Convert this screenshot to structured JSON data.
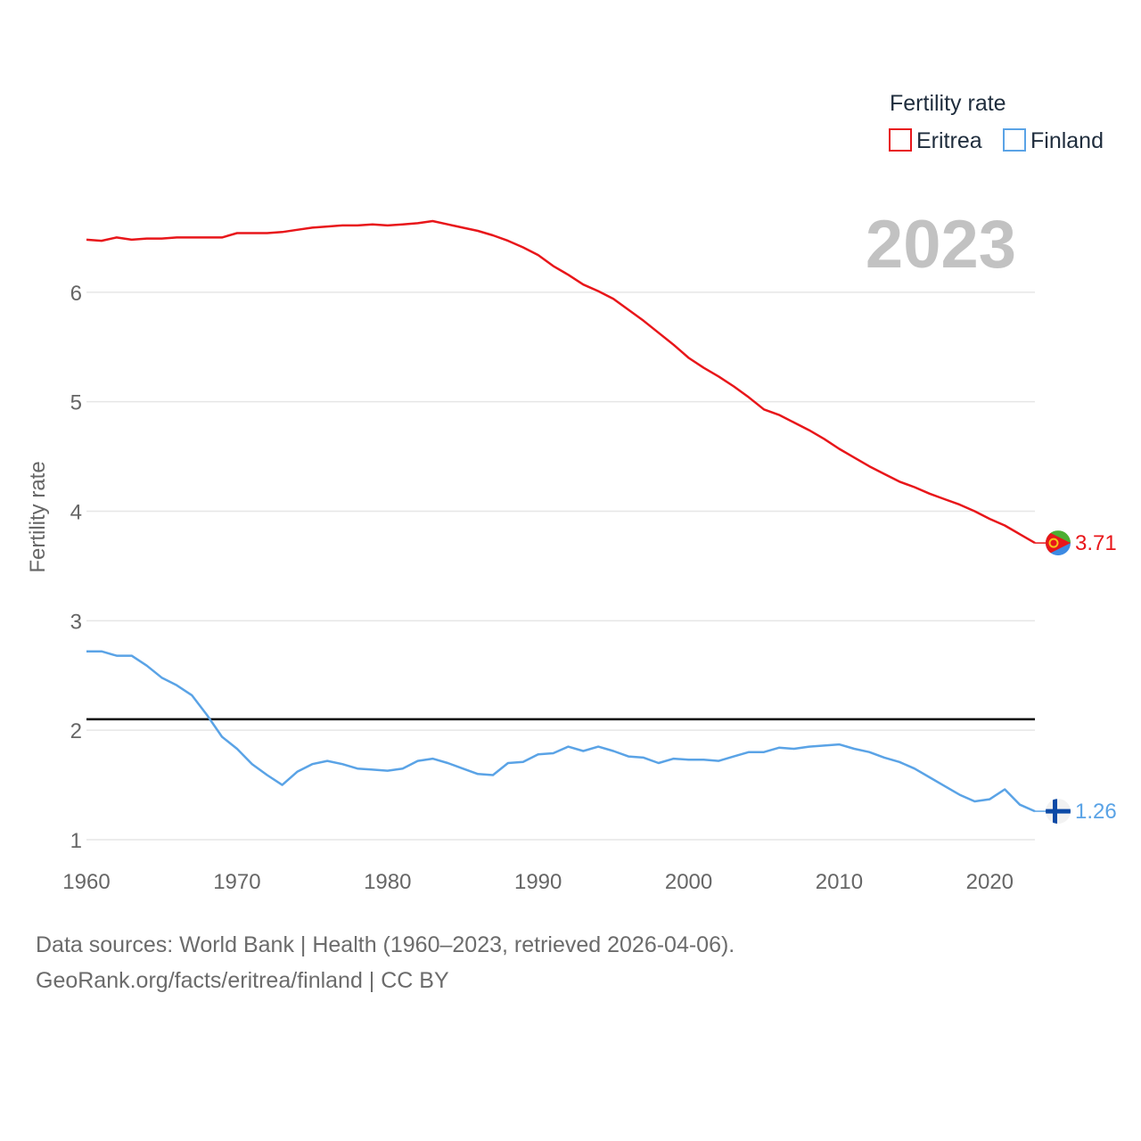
{
  "chart_data": {
    "type": "line",
    "title": "",
    "xlabel": "",
    "ylabel": "Fertility rate",
    "xlim": [
      1960,
      2023
    ],
    "ylim": [
      1,
      7
    ],
    "yticks": [
      1,
      2,
      3,
      4,
      5,
      6
    ],
    "xticks": [
      1960,
      1970,
      1980,
      1990,
      2000,
      2010,
      2020
    ],
    "year_label": "2023",
    "legend": {
      "title": "Fertility rate",
      "position": "top-right"
    },
    "reference_line": {
      "value": 2.1,
      "color": "#000000"
    },
    "series": [
      {
        "name": "Eritrea",
        "color": "#e8161a",
        "end_label": "3.71",
        "flag": "eritrea-flag",
        "x": [
          1960,
          1961,
          1962,
          1963,
          1964,
          1965,
          1966,
          1967,
          1968,
          1969,
          1970,
          1971,
          1972,
          1973,
          1974,
          1975,
          1976,
          1977,
          1978,
          1979,
          1980,
          1981,
          1982,
          1983,
          1984,
          1985,
          1986,
          1987,
          1988,
          1989,
          1990,
          1991,
          1992,
          1993,
          1994,
          1995,
          1996,
          1997,
          1998,
          1999,
          2000,
          2001,
          2002,
          2003,
          2004,
          2005,
          2006,
          2007,
          2008,
          2009,
          2010,
          2011,
          2012,
          2013,
          2014,
          2015,
          2016,
          2017,
          2018,
          2019,
          2020,
          2021,
          2022,
          2023
        ],
        "values": [
          6.48,
          6.47,
          6.5,
          6.48,
          6.49,
          6.49,
          6.5,
          6.5,
          6.5,
          6.5,
          6.54,
          6.54,
          6.54,
          6.55,
          6.57,
          6.59,
          6.6,
          6.61,
          6.61,
          6.62,
          6.61,
          6.62,
          6.63,
          6.65,
          6.62,
          6.59,
          6.56,
          6.52,
          6.47,
          6.41,
          6.34,
          6.24,
          6.16,
          6.07,
          6.01,
          5.94,
          5.84,
          5.74,
          5.63,
          5.52,
          5.4,
          5.31,
          5.23,
          5.14,
          5.04,
          4.93,
          4.88,
          4.81,
          4.74,
          4.66,
          4.57,
          4.49,
          4.41,
          4.34,
          4.27,
          4.22,
          4.16,
          4.11,
          4.06,
          4.0,
          3.93,
          3.87,
          3.79,
          3.71
        ]
      },
      {
        "name": "Finland",
        "color": "#5aa3e6",
        "end_label": "1.26",
        "flag": "finland-flag",
        "x": [
          1960,
          1961,
          1962,
          1963,
          1964,
          1965,
          1966,
          1967,
          1968,
          1969,
          1970,
          1971,
          1972,
          1973,
          1974,
          1975,
          1976,
          1977,
          1978,
          1979,
          1980,
          1981,
          1982,
          1983,
          1984,
          1985,
          1986,
          1987,
          1988,
          1989,
          1990,
          1991,
          1992,
          1993,
          1994,
          1995,
          1996,
          1997,
          1998,
          1999,
          2000,
          2001,
          2002,
          2003,
          2004,
          2005,
          2006,
          2007,
          2008,
          2009,
          2010,
          2011,
          2012,
          2013,
          2014,
          2015,
          2016,
          2017,
          2018,
          2019,
          2020,
          2021,
          2022,
          2023
        ],
        "values": [
          2.72,
          2.72,
          2.68,
          2.68,
          2.59,
          2.48,
          2.41,
          2.32,
          2.14,
          1.94,
          1.83,
          1.69,
          1.59,
          1.5,
          1.62,
          1.69,
          1.72,
          1.69,
          1.65,
          1.64,
          1.63,
          1.65,
          1.72,
          1.74,
          1.7,
          1.65,
          1.6,
          1.59,
          1.7,
          1.71,
          1.78,
          1.79,
          1.85,
          1.81,
          1.85,
          1.81,
          1.76,
          1.75,
          1.7,
          1.74,
          1.73,
          1.73,
          1.72,
          1.76,
          1.8,
          1.8,
          1.84,
          1.83,
          1.85,
          1.86,
          1.87,
          1.83,
          1.8,
          1.75,
          1.71,
          1.65,
          1.57,
          1.49,
          1.41,
          1.35,
          1.37,
          1.46,
          1.32,
          1.26
        ]
      }
    ]
  },
  "footer": {
    "line1": "Data sources: World Bank | Health (1960–2023, retrieved 2026-04-06).",
    "line2": "GeoRank.org/facts/eritrea/finland | CC BY"
  }
}
